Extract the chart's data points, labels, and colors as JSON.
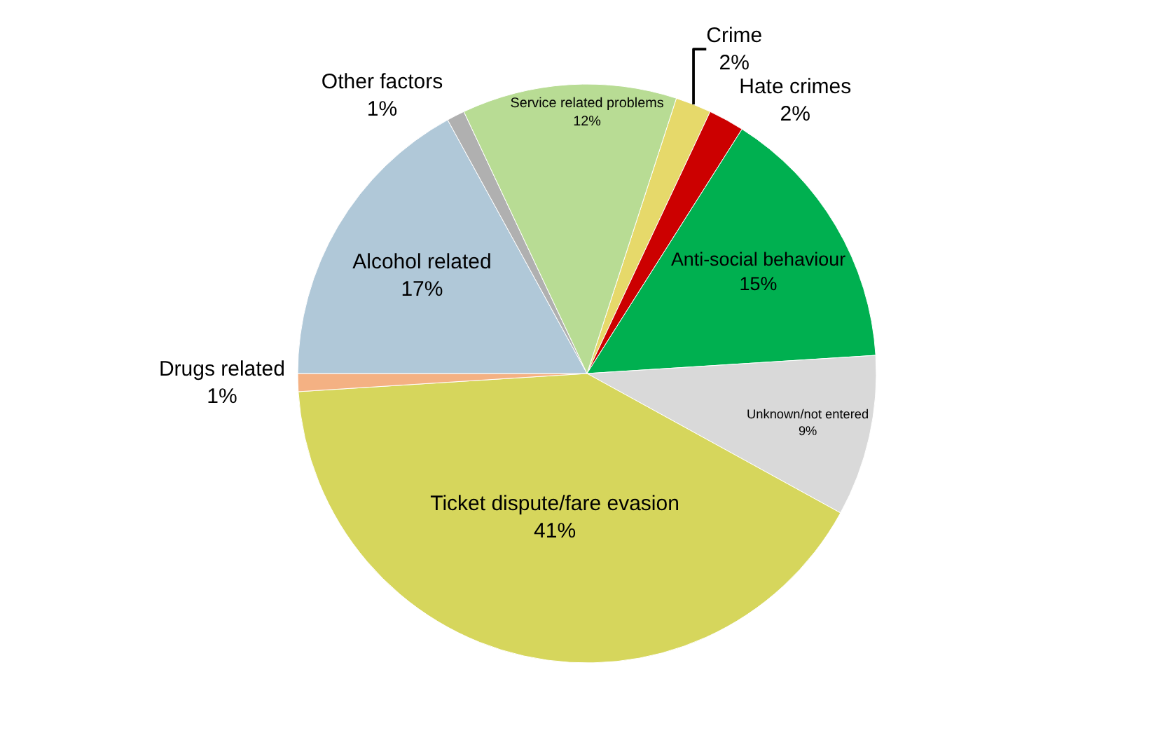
{
  "chart_data": {
    "type": "pie",
    "categories": [
      "Crime",
      "Hate crimes",
      "Anti-social behaviour",
      "Unknown/not entered",
      "Ticket dispute/fare evasion",
      "Drugs related",
      "Alcohol related",
      "Other factors",
      "Service related problems"
    ],
    "values": [
      2,
      2,
      15,
      9,
      41,
      1,
      17,
      1,
      12
    ],
    "value_labels": [
      "2%",
      "2%",
      "15%",
      "9%",
      "41%",
      "1%",
      "17%",
      "1%",
      "12%"
    ],
    "colors": [
      "#e6d96a",
      "#cc0000",
      "#00b050",
      "#d9d9d9",
      "#d6d65c",
      "#f4b183",
      "#b0c8d8",
      "#b0b0b0",
      "#b8dc94"
    ],
    "legend": false
  }
}
